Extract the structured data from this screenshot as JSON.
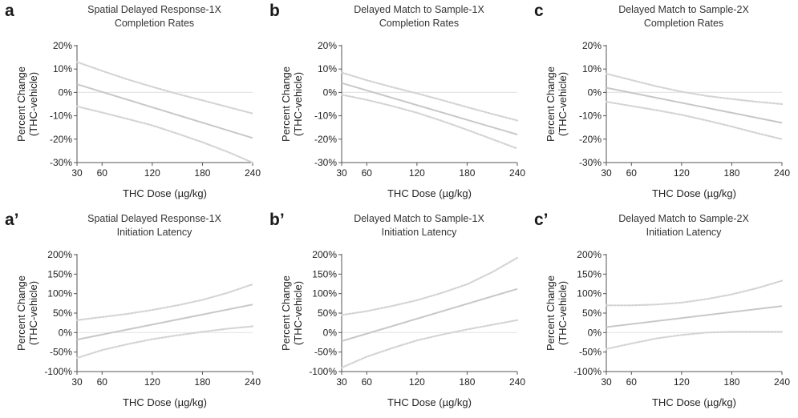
{
  "chart_data": [
    {
      "type": "line",
      "panel_label": "a",
      "title": [
        "Spatial Delayed Response-1X",
        "Completion Rates"
      ],
      "xlabel": "THC Dose (µg/kg)",
      "ylabel": [
        "Percent Change",
        "(THC-vehicle)"
      ],
      "xticks": [
        30,
        60,
        120,
        180,
        240
      ],
      "xlim": [
        30,
        240
      ],
      "yticks": [
        "-30%",
        "-20%",
        "-10%",
        "0%",
        "10%",
        "20%"
      ],
      "ylim": [
        -30,
        20
      ],
      "reference_line": 0,
      "series": [
        {
          "role": "fit",
          "x": [
            30,
            240
          ],
          "values": [
            3.5,
            -19.5
          ]
        },
        {
          "role": "ci_upper",
          "x": [
            30,
            60,
            90,
            120,
            150,
            180,
            210,
            240
          ],
          "values": [
            13,
            9.2,
            5.6,
            2.4,
            -0.6,
            -3.4,
            -6.2,
            -9
          ]
        },
        {
          "role": "ci_lower",
          "x": [
            30,
            60,
            90,
            120,
            150,
            180,
            210,
            240
          ],
          "values": [
            -6,
            -8.6,
            -11.3,
            -14.1,
            -17.6,
            -21.3,
            -25.4,
            -30
          ]
        }
      ],
      "grid": false
    },
    {
      "type": "line",
      "panel_label": "b",
      "title": [
        "Delayed Match to Sample-1X",
        "Completion Rates"
      ],
      "xlabel": "THC Dose (µg/kg)",
      "ylabel": [
        "Percent Change",
        "(THC-vehicle)"
      ],
      "xticks": [
        30,
        60,
        120,
        180,
        240
      ],
      "xlim": [
        30,
        240
      ],
      "yticks": [
        "-30%",
        "-20%",
        "-10%",
        "0%",
        "10%",
        "20%"
      ],
      "ylim": [
        -30,
        20
      ],
      "reference_line": 0,
      "series": [
        {
          "role": "fit",
          "x": [
            30,
            240
          ],
          "values": [
            4,
            -18
          ]
        },
        {
          "role": "ci_upper",
          "x": [
            30,
            60,
            90,
            120,
            150,
            180,
            210,
            240
          ],
          "values": [
            8.5,
            5.2,
            2.3,
            -0.4,
            -3.3,
            -6.3,
            -9.2,
            -12
          ]
        },
        {
          "role": "ci_lower",
          "x": [
            30,
            60,
            90,
            120,
            150,
            180,
            210,
            240
          ],
          "values": [
            -1,
            -3.2,
            -5.8,
            -8.7,
            -12.2,
            -16,
            -20,
            -24
          ]
        }
      ],
      "grid": false
    },
    {
      "type": "line",
      "panel_label": "c",
      "title": [
        "Delayed Match to Sample-2X",
        "Completion Rates"
      ],
      "xlabel": "THC Dose (µg/kg)",
      "ylabel": [
        "Percent Change",
        "(THC-vehicle)"
      ],
      "xticks": [
        30,
        60,
        120,
        180,
        240
      ],
      "xlim": [
        30,
        240
      ],
      "yticks": [
        "-30%",
        "-20%",
        "-10%",
        "0%",
        "10%",
        "20%"
      ],
      "ylim": [
        -30,
        20
      ],
      "reference_line": 0,
      "series": [
        {
          "role": "fit",
          "x": [
            30,
            240
          ],
          "values": [
            2,
            -13
          ]
        },
        {
          "role": "ci_upper",
          "x": [
            30,
            60,
            90,
            120,
            150,
            180,
            210,
            240
          ],
          "values": [
            8,
            5.3,
            2.6,
            0.3,
            -1.5,
            -2.8,
            -4,
            -5
          ]
        },
        {
          "role": "ci_lower",
          "x": [
            30,
            60,
            90,
            120,
            150,
            180,
            210,
            240
          ],
          "values": [
            -4,
            -5.8,
            -7.6,
            -9.6,
            -12,
            -14.6,
            -17.4,
            -20
          ]
        }
      ],
      "grid": false
    },
    {
      "type": "line",
      "panel_label": "a’",
      "title": [
        "Spatial Delayed Response-1X",
        "Initiation Latency"
      ],
      "xlabel": "THC Dose (µg/kg)",
      "ylabel": [
        "Percent Change",
        "(THC-vehicle)"
      ],
      "xticks": [
        30,
        60,
        120,
        180,
        240
      ],
      "xlim": [
        30,
        240
      ],
      "yticks": [
        "-100%",
        "-50%",
        "0%",
        "50%",
        "100%",
        "150%",
        "200%"
      ],
      "ylim": [
        -100,
        200
      ],
      "reference_line": 0,
      "series": [
        {
          "role": "fit",
          "x": [
            30,
            240
          ],
          "values": [
            -18,
            72
          ]
        },
        {
          "role": "ci_upper",
          "x": [
            30,
            60,
            90,
            120,
            150,
            180,
            210,
            240
          ],
          "values": [
            32,
            40,
            48,
            58,
            70,
            84,
            102,
            124
          ]
        },
        {
          "role": "ci_lower",
          "x": [
            30,
            60,
            90,
            120,
            150,
            180,
            210,
            240
          ],
          "values": [
            -65,
            -45,
            -30,
            -17,
            -7,
            2,
            10,
            16
          ]
        }
      ],
      "grid": false
    },
    {
      "type": "line",
      "panel_label": "b’",
      "title": [
        "Delayed Match to Sample-1X",
        "Initiation Latency"
      ],
      "xlabel": "THC Dose (µg/kg)",
      "ylabel": [
        "Percent Change",
        "(THC-vehicle)"
      ],
      "xticks": [
        30,
        60,
        120,
        180,
        240
      ],
      "xlim": [
        30,
        240
      ],
      "yticks": [
        "-100%",
        "-50%",
        "0%",
        "50%",
        "100%",
        "150%",
        "200%"
      ],
      "ylim": [
        -100,
        200
      ],
      "reference_line": 0,
      "series": [
        {
          "role": "fit",
          "x": [
            30,
            240
          ],
          "values": [
            -22,
            112
          ]
        },
        {
          "role": "ci_upper",
          "x": [
            30,
            60,
            90,
            120,
            150,
            180,
            210,
            240
          ],
          "values": [
            45,
            55,
            68,
            83,
            102,
            124,
            155,
            192
          ]
        },
        {
          "role": "ci_lower",
          "x": [
            30,
            60,
            90,
            120,
            150,
            180,
            210,
            240
          ],
          "values": [
            -90,
            -62,
            -40,
            -20,
            -5,
            8,
            20,
            32
          ]
        }
      ],
      "grid": false
    },
    {
      "type": "line",
      "panel_label": "c’",
      "title": [
        "Delayed Match to Sample-2X",
        "Initiation Latency"
      ],
      "xlabel": "THC Dose (µg/kg)",
      "ylabel": [
        "Percent Change",
        "(THC-vehicle)"
      ],
      "xticks": [
        30,
        60,
        120,
        180,
        240
      ],
      "xlim": [
        30,
        240
      ],
      "yticks": [
        "-100%",
        "-50%",
        "0%",
        "50%",
        "100%",
        "150%",
        "200%"
      ],
      "ylim": [
        -100,
        200
      ],
      "reference_line": 0,
      "series": [
        {
          "role": "fit",
          "x": [
            30,
            240
          ],
          "values": [
            14,
            68
          ]
        },
        {
          "role": "ci_upper",
          "x": [
            30,
            60,
            90,
            120,
            150,
            180,
            210,
            240
          ],
          "values": [
            70,
            70,
            72,
            77,
            86,
            98,
            114,
            133
          ]
        },
        {
          "role": "ci_lower",
          "x": [
            30,
            60,
            90,
            120,
            150,
            180,
            210,
            240
          ],
          "values": [
            -42,
            -28,
            -15,
            -6,
            0,
            2,
            2,
            2
          ]
        }
      ],
      "grid": false
    }
  ],
  "colors": {
    "axis": "#555555",
    "text": "#222222",
    "fit_line": "#c8c8c8",
    "ci_line": "#d4d4d4",
    "reference_line": "#e6e6e6"
  }
}
